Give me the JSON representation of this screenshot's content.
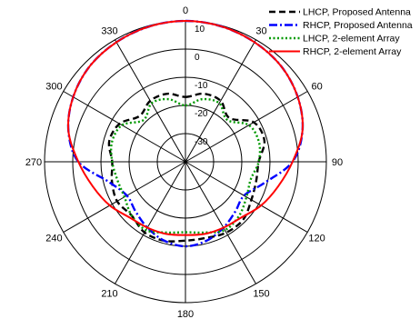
{
  "chart_data": {
    "type": "line",
    "subtype": "polar",
    "angle_unit": "degrees",
    "angle_ticks": [
      0,
      30,
      60,
      90,
      120,
      150,
      180,
      210,
      240,
      270,
      300,
      330
    ],
    "radial_ticks": [
      10,
      0,
      -10,
      -20,
      -30
    ],
    "radial_range": [
      -40,
      10
    ],
    "grid": true,
    "legend_placement": "top-right",
    "theta": [
      0,
      15,
      30,
      45,
      60,
      75,
      90,
      105,
      120,
      135,
      150,
      165,
      180,
      195,
      210,
      225,
      240,
      255,
      270,
      285,
      300,
      315,
      330,
      345
    ],
    "series": [
      {
        "name": "LHCP, Proposed Antenna",
        "color": "#000000",
        "dash": "dashed",
        "values": [
          -17,
          -15,
          -15,
          -18,
          -12,
          -11,
          -14,
          -14,
          -13,
          -11,
          -11,
          -12,
          -12,
          -11,
          -11,
          -13,
          -12,
          -13,
          -14,
          -12,
          -13,
          -17,
          -15,
          -15
        ]
      },
      {
        "name": "RHCP, Proposed Antenna",
        "color": "#0000ff",
        "dash": "dashdot",
        "values": [
          10,
          9.7,
          9,
          8,
          6,
          3,
          -2,
          -11,
          -16,
          -15,
          -13,
          -11,
          -10,
          -11,
          -13,
          -15,
          -16,
          -12,
          -2,
          3,
          6,
          8,
          9,
          9.7
        ]
      },
      {
        "name": "LHCP, 2-element Array",
        "color": "#009900",
        "dash": "dotted",
        "values": [
          -20,
          -17,
          -16,
          -19,
          -14,
          -13,
          -14,
          -16,
          -15,
          -13,
          -12,
          -14,
          -15,
          -14,
          -12,
          -13,
          -15,
          -15,
          -14,
          -13,
          -14,
          -19,
          -16,
          -17
        ]
      },
      {
        "name": "RHCP, 2-element Array",
        "color": "#ff0000",
        "dash": "solid",
        "values": [
          10,
          9.7,
          9,
          8,
          6,
          3,
          -2,
          -6,
          -9,
          -12,
          -13,
          -13.5,
          -14,
          -13.5,
          -13,
          -12,
          -9,
          -6,
          -2,
          3,
          6,
          8,
          9,
          9.7
        ]
      }
    ]
  }
}
